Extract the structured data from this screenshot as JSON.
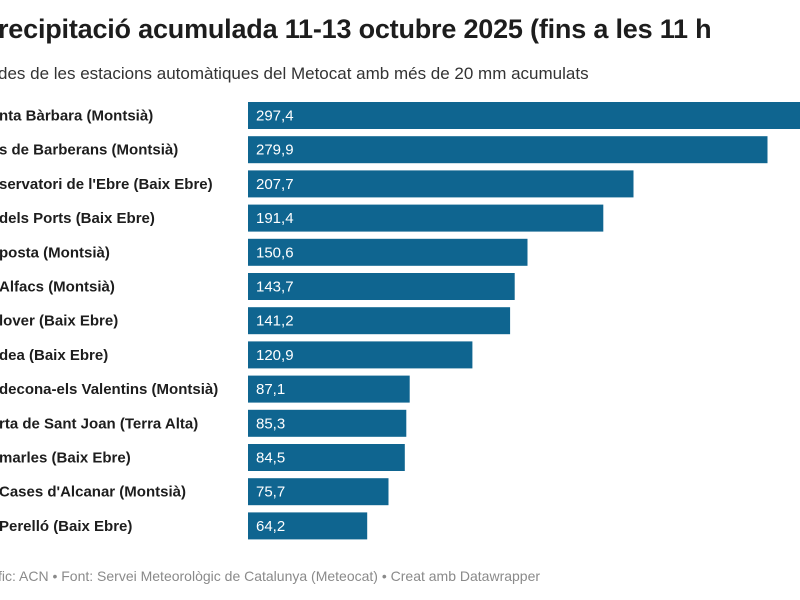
{
  "header": {
    "title": "recipitació acumulada 11-13 octubre 2025 (fins a les 11 h",
    "subtitle": "des de les estacions automàtiques del Metocat amb més de 20 mm acumulats"
  },
  "footer": {
    "text": "fic: ACN • Font: Servei Meteorològic de Catalunya (Meteocat) • Creat amb Datawrapper"
  },
  "colors": {
    "bar": "#0f6590",
    "label": "#1d1d1d",
    "value": "#ffffff"
  },
  "chart_data": {
    "type": "bar",
    "orientation": "horizontal",
    "categories": [
      "nta Bàrbara (Montsià)",
      "s de Barberans (Montsià)",
      "servatori de l'Ebre (Baix Ebre)",
      " dels Ports (Baix Ebre)",
      "posta (Montsià)",
      " Alfacs (Montsià)",
      "lover (Baix Ebre)",
      "dea (Baix Ebre)",
      "decona-els Valentins (Montsià)",
      "rta de Sant Joan (Terra Alta)",
      "marles (Baix Ebre)",
      " Cases d'Alcanar (Montsià)",
      "Perelló (Baix Ebre)"
    ],
    "values": [
      297.4,
      279.9,
      207.7,
      191.4,
      150.6,
      143.7,
      141.2,
      120.9,
      87.1,
      85.3,
      84.5,
      75.7,
      64.2
    ],
    "value_labels": [
      "297,4",
      "279,9",
      "207,7",
      "191,4",
      "150,6",
      "143,7",
      "141,2",
      "120,9",
      "87,1",
      "85,3",
      "84,5",
      "75,7",
      "64,2"
    ],
    "title": "recipitació acumulada 11-13 octubre 2025 (fins a les 11 h",
    "subtitle": "des de les estacions automàtiques del Metocat amb més de 20 mm acumulats",
    "xlabel": "",
    "ylabel": "",
    "xlim": [
      0,
      297.4
    ],
    "grid": false,
    "legend": "none"
  }
}
